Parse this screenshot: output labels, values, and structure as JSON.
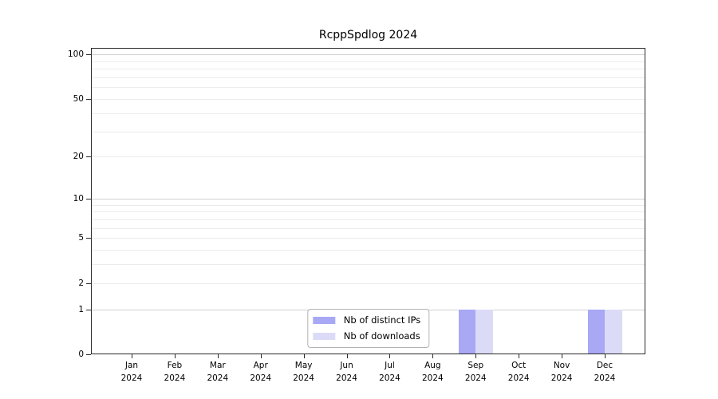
{
  "title": "RcppSpdlog 2024",
  "chart_data": {
    "type": "bar",
    "title": "RcppSpdlog 2024",
    "x_categories": [
      {
        "month": "Jan",
        "year": "2024"
      },
      {
        "month": "Feb",
        "year": "2024"
      },
      {
        "month": "Mar",
        "year": "2024"
      },
      {
        "month": "Apr",
        "year": "2024"
      },
      {
        "month": "May",
        "year": "2024"
      },
      {
        "month": "Jun",
        "year": "2024"
      },
      {
        "month": "Jul",
        "year": "2024"
      },
      {
        "month": "Aug",
        "year": "2024"
      },
      {
        "month": "Sep",
        "year": "2024"
      },
      {
        "month": "Oct",
        "year": "2024"
      },
      {
        "month": "Nov",
        "year": "2024"
      },
      {
        "month": "Dec",
        "year": "2024"
      }
    ],
    "series": [
      {
        "name": "Nb of distinct IPs",
        "color": "#a8a8f5",
        "values": [
          0,
          0,
          0,
          0,
          0,
          0,
          0,
          0,
          1,
          0,
          0,
          1
        ]
      },
      {
        "name": "Nb of downloads",
        "color": "#dbdbf8",
        "values": [
          0,
          0,
          0,
          0,
          0,
          0,
          0,
          0,
          1,
          0,
          0,
          1
        ]
      }
    ],
    "y_axis": {
      "scale": "log1p",
      "ticks": [
        0,
        1,
        2,
        5,
        10,
        20,
        50,
        100
      ],
      "major_gridlines": [
        1,
        10,
        100
      ],
      "minor_gridlines": [
        2,
        3,
        4,
        5,
        6,
        7,
        8,
        9,
        20,
        30,
        40,
        50,
        60,
        70,
        80,
        90
      ],
      "min": 0,
      "max": 111
    },
    "grid": "horizontal",
    "legend_position": "inside-bottom-center",
    "colors": {
      "background": "#ffffff",
      "spine": "#2a2a2a",
      "tick": "#2a2a2a",
      "text": "#000000",
      "minor_grid": "#ececec",
      "major_grid": "#d2d2d2",
      "legend_border": "#b3b3b3"
    }
  }
}
